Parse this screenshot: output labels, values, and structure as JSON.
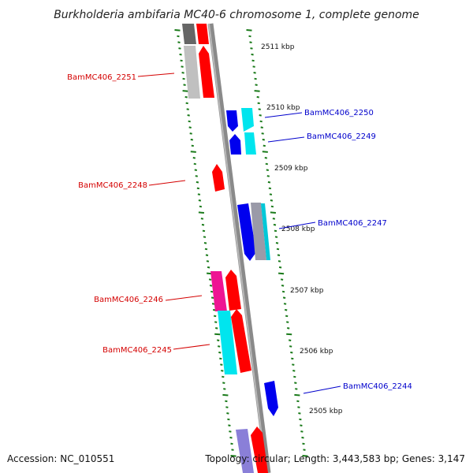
{
  "title": "Burkholderia ambifaria MC40-6 chromosome 1, complete genome",
  "footer": {
    "accession": "Accession: NC_010551",
    "topology": "Topology: circular; Length: 3,443,583 bp; Genes: 3,147"
  },
  "colors": {
    "label_left": "#d40000",
    "label_right": "#0000cc",
    "tick": "#1a7a1a",
    "backbone": "#808080",
    "red": "#ff0000",
    "blue": "#0000ee",
    "cyan": "#00e5ee",
    "magenta": "#ee1493",
    "gray": "#c0c0c0",
    "darkgray": "#666666",
    "slate": "#8a7fd8"
  },
  "scale_labels": [
    "2511 kbp",
    "2510 kbp",
    "2509 kbp",
    "2508 kbp",
    "2507 kbp",
    "2506 kbp",
    "2505 kbp"
  ],
  "genes": [
    {
      "label": "BamMC406_2251",
      "side": "left"
    },
    {
      "label": "BamMC406_2250",
      "side": "right"
    },
    {
      "label": "BamMC406_2249",
      "side": "right"
    },
    {
      "label": "BamMC406_2248",
      "side": "left"
    },
    {
      "label": "BamMC406_2247",
      "side": "right"
    },
    {
      "label": "BamMC406_2246",
      "side": "left"
    },
    {
      "label": "BamMC406_2245",
      "side": "left"
    },
    {
      "label": "BamMC406_2244",
      "side": "right"
    }
  ]
}
